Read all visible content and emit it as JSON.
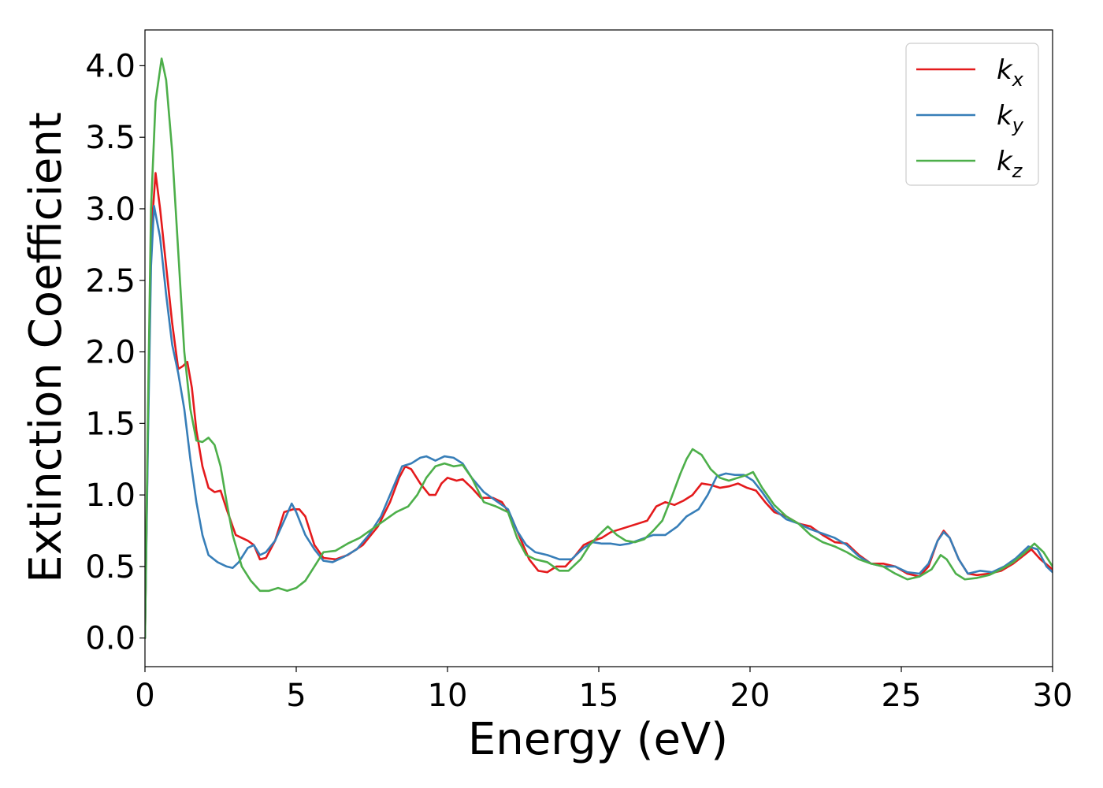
{
  "chart_data": {
    "type": "line",
    "xlabel": "Energy (eV)",
    "ylabel": "Extinction Coefficient",
    "xlim": [
      0,
      30
    ],
    "ylim": [
      -0.2,
      4.25
    ],
    "xticks": [
      0,
      5,
      10,
      15,
      20,
      25,
      30
    ],
    "yticks": [
      0.0,
      0.5,
      1.0,
      1.5,
      2.0,
      2.5,
      3.0,
      3.5,
      4.0
    ],
    "grid": false,
    "legend_position": "top-right",
    "series": [
      {
        "name": "k",
        "subscript": "x",
        "color": "#e41a1c",
        "points": [
          [
            0,
            0
          ],
          [
            0.1,
            1.5
          ],
          [
            0.2,
            2.8
          ],
          [
            0.35,
            3.25
          ],
          [
            0.5,
            3.0
          ],
          [
            0.7,
            2.6
          ],
          [
            0.9,
            2.2
          ],
          [
            1.1,
            1.88
          ],
          [
            1.25,
            1.9
          ],
          [
            1.4,
            1.93
          ],
          [
            1.55,
            1.75
          ],
          [
            1.7,
            1.45
          ],
          [
            1.9,
            1.2
          ],
          [
            2.1,
            1.05
          ],
          [
            2.3,
            1.02
          ],
          [
            2.5,
            1.03
          ],
          [
            2.7,
            0.9
          ],
          [
            3.0,
            0.72
          ],
          [
            3.4,
            0.68
          ],
          [
            3.6,
            0.65
          ],
          [
            3.8,
            0.55
          ],
          [
            4.0,
            0.56
          ],
          [
            4.3,
            0.68
          ],
          [
            4.6,
            0.88
          ],
          [
            4.9,
            0.9
          ],
          [
            5.1,
            0.9
          ],
          [
            5.3,
            0.85
          ],
          [
            5.6,
            0.65
          ],
          [
            5.9,
            0.56
          ],
          [
            6.3,
            0.55
          ],
          [
            6.7,
            0.58
          ],
          [
            7.2,
            0.65
          ],
          [
            7.7,
            0.78
          ],
          [
            8.1,
            0.95
          ],
          [
            8.4,
            1.12
          ],
          [
            8.6,
            1.2
          ],
          [
            8.8,
            1.18
          ],
          [
            9.1,
            1.08
          ],
          [
            9.4,
            1.0
          ],
          [
            9.6,
            1.0
          ],
          [
            9.8,
            1.08
          ],
          [
            10.0,
            1.12
          ],
          [
            10.3,
            1.1
          ],
          [
            10.5,
            1.11
          ],
          [
            10.8,
            1.05
          ],
          [
            11.1,
            0.98
          ],
          [
            11.5,
            0.98
          ],
          [
            11.8,
            0.95
          ],
          [
            12.1,
            0.85
          ],
          [
            12.4,
            0.7
          ],
          [
            12.7,
            0.55
          ],
          [
            13.0,
            0.47
          ],
          [
            13.3,
            0.46
          ],
          [
            13.6,
            0.5
          ],
          [
            13.9,
            0.5
          ],
          [
            14.2,
            0.57
          ],
          [
            14.5,
            0.65
          ],
          [
            14.8,
            0.68
          ],
          [
            15.1,
            0.7
          ],
          [
            15.4,
            0.74
          ],
          [
            15.7,
            0.76
          ],
          [
            16.0,
            0.78
          ],
          [
            16.3,
            0.8
          ],
          [
            16.6,
            0.82
          ],
          [
            16.9,
            0.92
          ],
          [
            17.2,
            0.95
          ],
          [
            17.5,
            0.93
          ],
          [
            17.8,
            0.96
          ],
          [
            18.1,
            1.0
          ],
          [
            18.4,
            1.08
          ],
          [
            18.7,
            1.07
          ],
          [
            19.0,
            1.05
          ],
          [
            19.3,
            1.06
          ],
          [
            19.6,
            1.08
          ],
          [
            19.9,
            1.05
          ],
          [
            20.2,
            1.03
          ],
          [
            20.5,
            0.95
          ],
          [
            20.8,
            0.88
          ],
          [
            21.2,
            0.85
          ],
          [
            21.6,
            0.8
          ],
          [
            22.0,
            0.78
          ],
          [
            22.4,
            0.72
          ],
          [
            22.8,
            0.67
          ],
          [
            23.2,
            0.66
          ],
          [
            23.6,
            0.58
          ],
          [
            24.0,
            0.52
          ],
          [
            24.4,
            0.52
          ],
          [
            24.8,
            0.5
          ],
          [
            25.2,
            0.45
          ],
          [
            25.6,
            0.43
          ],
          [
            25.9,
            0.5
          ],
          [
            26.2,
            0.68
          ],
          [
            26.4,
            0.75
          ],
          [
            26.6,
            0.7
          ],
          [
            26.9,
            0.55
          ],
          [
            27.2,
            0.45
          ],
          [
            27.5,
            0.44
          ],
          [
            27.9,
            0.45
          ],
          [
            28.3,
            0.47
          ],
          [
            28.7,
            0.52
          ],
          [
            29.0,
            0.57
          ],
          [
            29.3,
            0.62
          ],
          [
            29.6,
            0.55
          ],
          [
            30,
            0.48
          ]
        ]
      },
      {
        "name": "k",
        "subscript": "y",
        "color": "#377eb8",
        "points": [
          [
            0,
            0
          ],
          [
            0.1,
            1.4
          ],
          [
            0.2,
            2.6
          ],
          [
            0.3,
            3.02
          ],
          [
            0.5,
            2.8
          ],
          [
            0.7,
            2.4
          ],
          [
            0.9,
            2.05
          ],
          [
            1.1,
            1.85
          ],
          [
            1.3,
            1.6
          ],
          [
            1.5,
            1.25
          ],
          [
            1.7,
            0.95
          ],
          [
            1.9,
            0.72
          ],
          [
            2.1,
            0.58
          ],
          [
            2.4,
            0.53
          ],
          [
            2.7,
            0.5
          ],
          [
            2.9,
            0.49
          ],
          [
            3.1,
            0.53
          ],
          [
            3.4,
            0.63
          ],
          [
            3.6,
            0.65
          ],
          [
            3.8,
            0.58
          ],
          [
            4.0,
            0.6
          ],
          [
            4.3,
            0.68
          ],
          [
            4.6,
            0.82
          ],
          [
            4.85,
            0.94
          ],
          [
            5.0,
            0.88
          ],
          [
            5.3,
            0.72
          ],
          [
            5.6,
            0.62
          ],
          [
            5.9,
            0.54
          ],
          [
            6.2,
            0.53
          ],
          [
            6.6,
            0.57
          ],
          [
            7.0,
            0.62
          ],
          [
            7.4,
            0.72
          ],
          [
            7.8,
            0.85
          ],
          [
            8.2,
            1.05
          ],
          [
            8.5,
            1.2
          ],
          [
            8.8,
            1.22
          ],
          [
            9.1,
            1.26
          ],
          [
            9.3,
            1.27
          ],
          [
            9.6,
            1.24
          ],
          [
            9.9,
            1.27
          ],
          [
            10.2,
            1.26
          ],
          [
            10.5,
            1.22
          ],
          [
            10.8,
            1.12
          ],
          [
            11.2,
            1.02
          ],
          [
            11.6,
            0.96
          ],
          [
            12.0,
            0.9
          ],
          [
            12.3,
            0.75
          ],
          [
            12.6,
            0.65
          ],
          [
            12.9,
            0.6
          ],
          [
            13.3,
            0.58
          ],
          [
            13.7,
            0.55
          ],
          [
            14.1,
            0.55
          ],
          [
            14.5,
            0.63
          ],
          [
            14.8,
            0.67
          ],
          [
            15.1,
            0.66
          ],
          [
            15.4,
            0.66
          ],
          [
            15.7,
            0.65
          ],
          [
            16.0,
            0.66
          ],
          [
            16.4,
            0.69
          ],
          [
            16.8,
            0.72
          ],
          [
            17.2,
            0.72
          ],
          [
            17.6,
            0.78
          ],
          [
            17.9,
            0.85
          ],
          [
            18.3,
            0.9
          ],
          [
            18.6,
            1.0
          ],
          [
            18.9,
            1.13
          ],
          [
            19.2,
            1.15
          ],
          [
            19.5,
            1.14
          ],
          [
            19.8,
            1.14
          ],
          [
            20.1,
            1.1
          ],
          [
            20.4,
            1.02
          ],
          [
            20.8,
            0.9
          ],
          [
            21.2,
            0.83
          ],
          [
            21.6,
            0.8
          ],
          [
            22.0,
            0.76
          ],
          [
            22.4,
            0.73
          ],
          [
            22.8,
            0.7
          ],
          [
            23.2,
            0.65
          ],
          [
            23.6,
            0.57
          ],
          [
            24.0,
            0.52
          ],
          [
            24.4,
            0.5
          ],
          [
            24.8,
            0.5
          ],
          [
            25.2,
            0.46
          ],
          [
            25.6,
            0.45
          ],
          [
            25.9,
            0.52
          ],
          [
            26.2,
            0.68
          ],
          [
            26.4,
            0.74
          ],
          [
            26.6,
            0.7
          ],
          [
            26.9,
            0.55
          ],
          [
            27.2,
            0.45
          ],
          [
            27.6,
            0.47
          ],
          [
            28.0,
            0.46
          ],
          [
            28.4,
            0.5
          ],
          [
            28.8,
            0.56
          ],
          [
            29.2,
            0.64
          ],
          [
            29.5,
            0.62
          ],
          [
            29.8,
            0.5
          ],
          [
            30,
            0.46
          ]
        ]
      },
      {
        "name": "k",
        "subscript": "z",
        "color": "#4daf4a",
        "points": [
          [
            0,
            0
          ],
          [
            0.1,
            1.6
          ],
          [
            0.2,
            3.0
          ],
          [
            0.35,
            3.75
          ],
          [
            0.55,
            4.05
          ],
          [
            0.7,
            3.9
          ],
          [
            0.9,
            3.4
          ],
          [
            1.1,
            2.7
          ],
          [
            1.3,
            2.0
          ],
          [
            1.5,
            1.6
          ],
          [
            1.7,
            1.38
          ],
          [
            1.9,
            1.37
          ],
          [
            2.1,
            1.4
          ],
          [
            2.3,
            1.35
          ],
          [
            2.5,
            1.2
          ],
          [
            2.7,
            0.95
          ],
          [
            2.9,
            0.72
          ],
          [
            3.2,
            0.5
          ],
          [
            3.5,
            0.4
          ],
          [
            3.8,
            0.33
          ],
          [
            4.1,
            0.33
          ],
          [
            4.4,
            0.35
          ],
          [
            4.7,
            0.33
          ],
          [
            5.0,
            0.35
          ],
          [
            5.3,
            0.4
          ],
          [
            5.6,
            0.5
          ],
          [
            5.9,
            0.6
          ],
          [
            6.3,
            0.61
          ],
          [
            6.7,
            0.66
          ],
          [
            7.1,
            0.7
          ],
          [
            7.5,
            0.76
          ],
          [
            7.9,
            0.82
          ],
          [
            8.3,
            0.88
          ],
          [
            8.7,
            0.92
          ],
          [
            9.0,
            1.0
          ],
          [
            9.3,
            1.12
          ],
          [
            9.6,
            1.2
          ],
          [
            9.9,
            1.22
          ],
          [
            10.2,
            1.2
          ],
          [
            10.5,
            1.21
          ],
          [
            10.8,
            1.12
          ],
          [
            11.2,
            0.95
          ],
          [
            11.6,
            0.92
          ],
          [
            12.0,
            0.88
          ],
          [
            12.3,
            0.7
          ],
          [
            12.6,
            0.58
          ],
          [
            12.9,
            0.55
          ],
          [
            13.3,
            0.53
          ],
          [
            13.7,
            0.47
          ],
          [
            14.0,
            0.47
          ],
          [
            14.4,
            0.55
          ],
          [
            14.7,
            0.65
          ],
          [
            15.0,
            0.72
          ],
          [
            15.3,
            0.78
          ],
          [
            15.6,
            0.72
          ],
          [
            15.9,
            0.68
          ],
          [
            16.2,
            0.67
          ],
          [
            16.5,
            0.69
          ],
          [
            16.8,
            0.75
          ],
          [
            17.1,
            0.82
          ],
          [
            17.4,
            0.98
          ],
          [
            17.7,
            1.15
          ],
          [
            17.9,
            1.25
          ],
          [
            18.1,
            1.32
          ],
          [
            18.4,
            1.28
          ],
          [
            18.7,
            1.18
          ],
          [
            19.0,
            1.12
          ],
          [
            19.3,
            1.1
          ],
          [
            19.6,
            1.12
          ],
          [
            19.9,
            1.14
          ],
          [
            20.1,
            1.16
          ],
          [
            20.4,
            1.05
          ],
          [
            20.8,
            0.93
          ],
          [
            21.2,
            0.85
          ],
          [
            21.6,
            0.8
          ],
          [
            22.0,
            0.72
          ],
          [
            22.4,
            0.67
          ],
          [
            22.8,
            0.64
          ],
          [
            23.2,
            0.6
          ],
          [
            23.6,
            0.55
          ],
          [
            24.0,
            0.52
          ],
          [
            24.4,
            0.5
          ],
          [
            24.8,
            0.45
          ],
          [
            25.2,
            0.41
          ],
          [
            25.6,
            0.43
          ],
          [
            26.0,
            0.48
          ],
          [
            26.3,
            0.58
          ],
          [
            26.5,
            0.55
          ],
          [
            26.8,
            0.45
          ],
          [
            27.1,
            0.41
          ],
          [
            27.5,
            0.42
          ],
          [
            27.9,
            0.44
          ],
          [
            28.3,
            0.48
          ],
          [
            28.7,
            0.53
          ],
          [
            29.1,
            0.6
          ],
          [
            29.4,
            0.66
          ],
          [
            29.7,
            0.6
          ],
          [
            30,
            0.5
          ]
        ]
      }
    ]
  }
}
